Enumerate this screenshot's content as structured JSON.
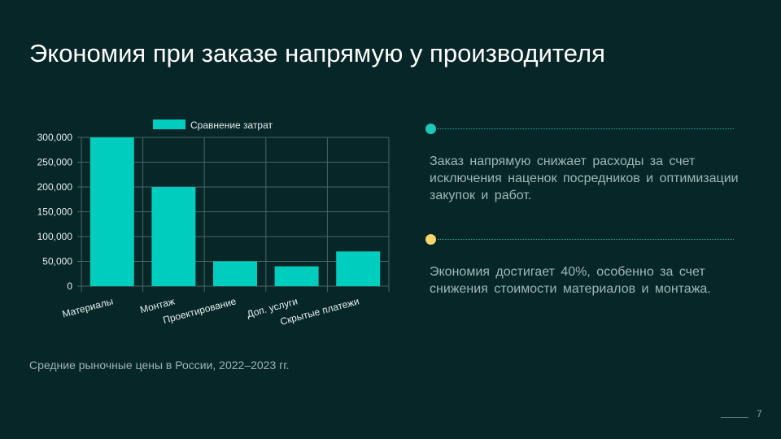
{
  "title": "Экономия при заказе напрямую у производителя",
  "chart_data": {
    "type": "bar",
    "categories": [
      "Материалы",
      "Монтаж",
      "Проектирование",
      "Доп. услуги",
      "Скрытые платежи"
    ],
    "series": [
      {
        "name": "Сравнение затрат",
        "values": [
          300000,
          200000,
          50000,
          40000,
          70000
        ]
      }
    ],
    "ylim": [
      0,
      300000
    ],
    "yticks": [
      0,
      50000,
      100000,
      150000,
      200000,
      250000,
      300000
    ],
    "ytick_labels": [
      "0",
      "50,000",
      "100,000",
      "150,000",
      "200,000",
      "250,000",
      "300,000"
    ],
    "legend": "top-center",
    "grid": true,
    "bar_color": "#00CDBE"
  },
  "source_note": "Средние рыночные цены в России, 2022–2023 гг.",
  "points": [
    {
      "color": "#1CC7B8",
      "text": "Заказ напрямую снижает расходы за счет исключения наценок посредников и оптимизации закупок и работ."
    },
    {
      "color": "#F7D56A",
      "text": "Экономия достигает 40%, особенно за счет снижения стоимости материалов и монтажа."
    }
  ],
  "page_number": "7"
}
